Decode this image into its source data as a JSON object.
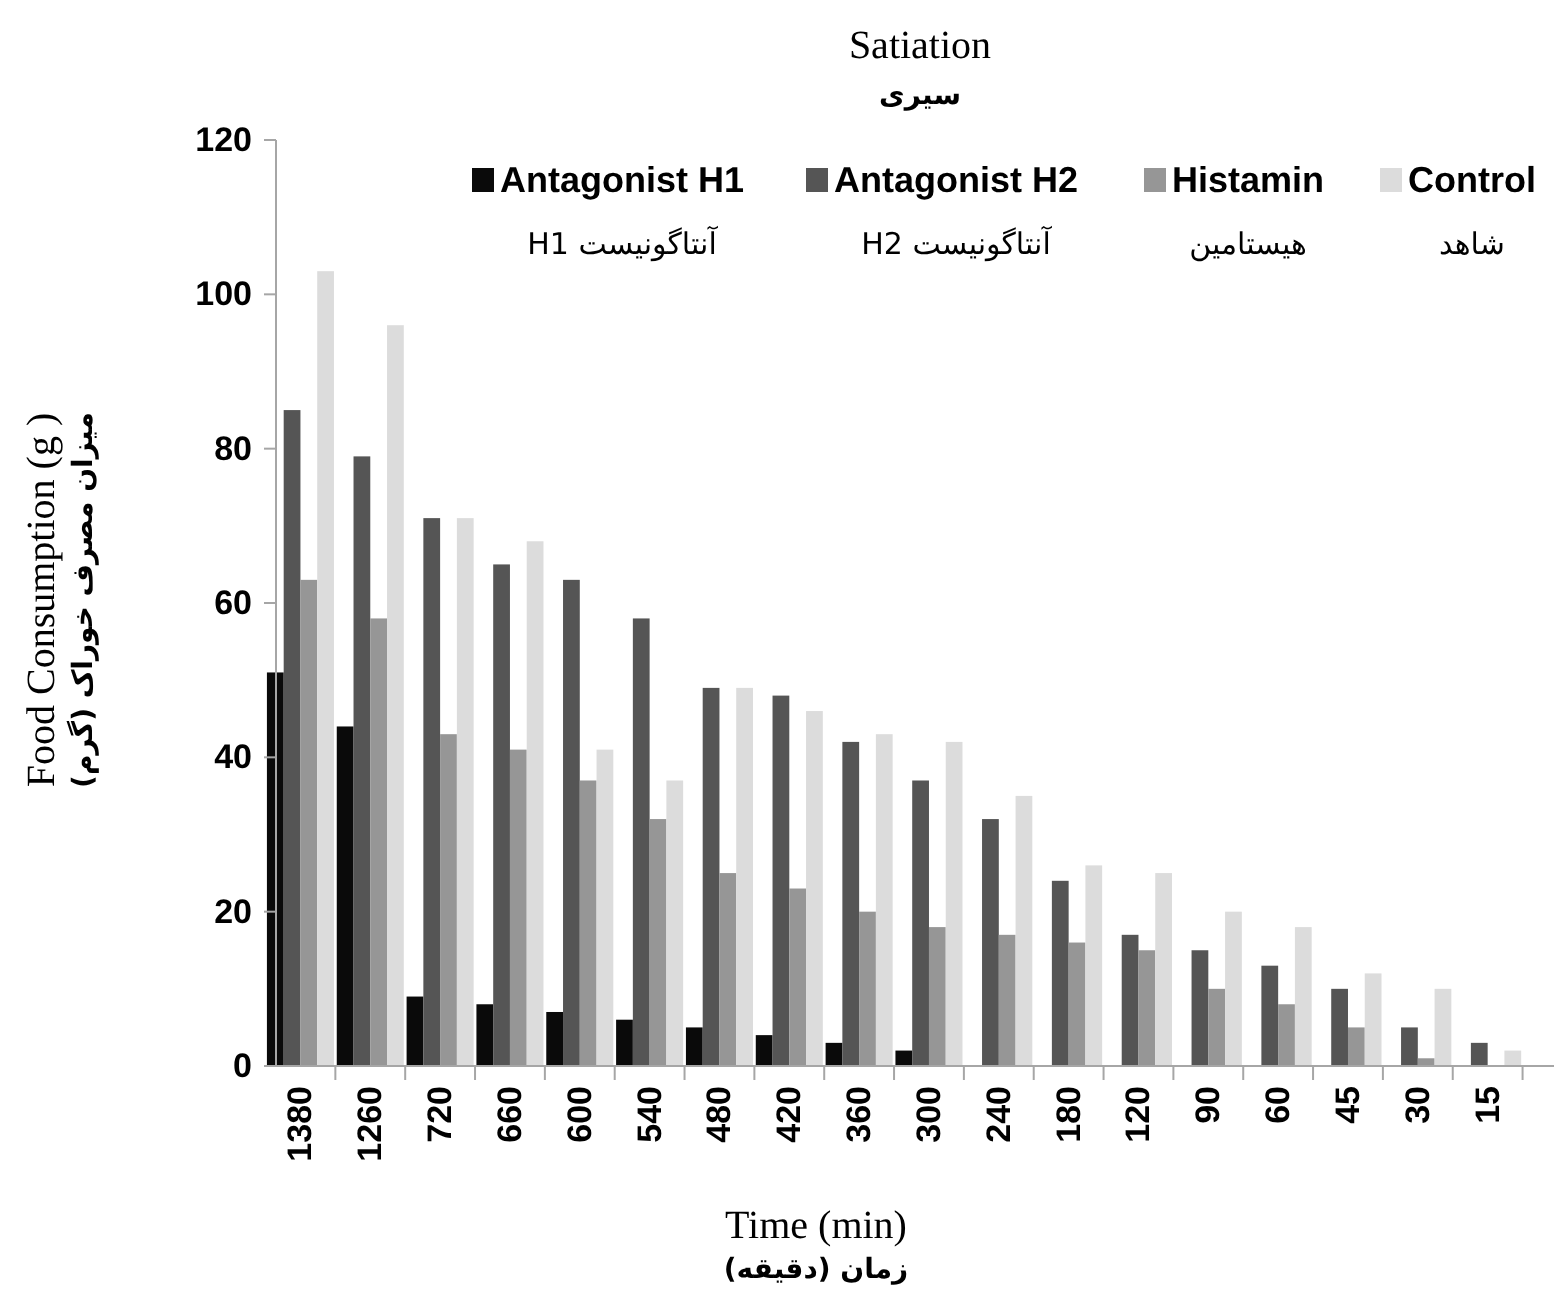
{
  "chart_data": {
    "type": "bar",
    "title": "Satiation",
    "subtitle": "سیری",
    "xlabel": "Time (min)",
    "ylabel": "Food Consumption (g )",
    "categories": [
      "1380",
      "1260",
      "720",
      "660",
      "600",
      "540",
      "480",
      "420",
      "360",
      "300",
      "240",
      "180",
      "120",
      "90",
      "60",
      "45",
      "30",
      "15"
    ],
    "series": [
      {
        "name": "Antagonist H1",
        "color": "#0a0a0a",
        "values": [
          51,
          44,
          9,
          8,
          7,
          6,
          5,
          4,
          3,
          2,
          0,
          0,
          0,
          0,
          0,
          0,
          0,
          0
        ]
      },
      {
        "name": "Antagonist H2",
        "color": "#555555",
        "values": [
          85,
          79,
          71,
          65,
          63,
          58,
          49,
          48,
          42,
          37,
          32,
          24,
          17,
          15,
          13,
          10,
          5,
          3
        ]
      },
      {
        "name": "Histamin",
        "color": "#969696",
        "values": [
          63,
          58,
          43,
          41,
          37,
          32,
          25,
          23,
          20,
          18,
          17,
          16,
          15,
          10,
          8,
          5,
          1,
          0
        ]
      },
      {
        "name": "Control",
        "color": "#dcdcdc",
        "values": [
          103,
          96,
          71,
          68,
          41,
          37,
          49,
          46,
          43,
          42,
          35,
          26,
          25,
          20,
          18,
          12,
          10,
          2
        ]
      }
    ],
    "ylim": [
      0,
      120
    ],
    "yticks": [
      0,
      20,
      40,
      60,
      80,
      100,
      120
    ],
    "grid": false,
    "legend": "top right",
    "annotations": [
      "آنتاگونیست H1",
      "آنتاگونیست H2",
      "هیستامین",
      "شاهد",
      "میزان مصرف خوراک (گرم)",
      "زمان (دقیقه)"
    ]
  }
}
